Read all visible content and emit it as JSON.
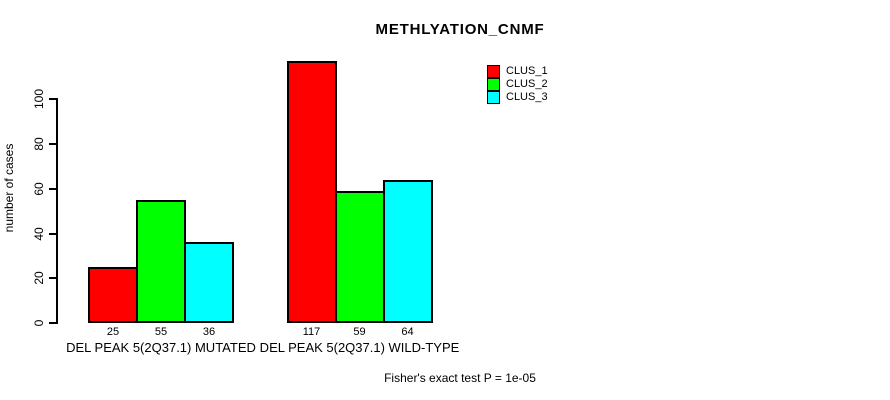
{
  "title": "METHLYATION_CNMF",
  "footer": "Fisher's exact test P = 1e-05",
  "chart_data": {
    "type": "bar",
    "title": "METHLYATION_CNMF",
    "xlabel": "",
    "ylabel": "number of cases",
    "categories": [
      "DEL PEAK 5(2Q37.1) MUTATED",
      "DEL PEAK 5(2Q37.1) WILD-TYPE"
    ],
    "series": [
      {
        "name": "CLUS_1",
        "color": "#FF0000",
        "values": [
          25,
          117
        ]
      },
      {
        "name": "CLUS_2",
        "color": "#00FF00",
        "values": [
          55,
          59
        ]
      },
      {
        "name": "CLUS_3",
        "color": "#00FFFF",
        "values": [
          36,
          64
        ]
      }
    ],
    "bar_value_labels": [
      [
        25,
        55,
        36
      ],
      [
        117,
        59,
        64
      ]
    ],
    "yticks": [
      0,
      20,
      40,
      60,
      80,
      100
    ],
    "ylim": [
      0,
      120
    ],
    "grid": false,
    "legend_position": "top-right",
    "annotation": "Fisher's exact test P = 1e-05",
    "background": "#FFFFFF",
    "axis_color": "#000000"
  }
}
